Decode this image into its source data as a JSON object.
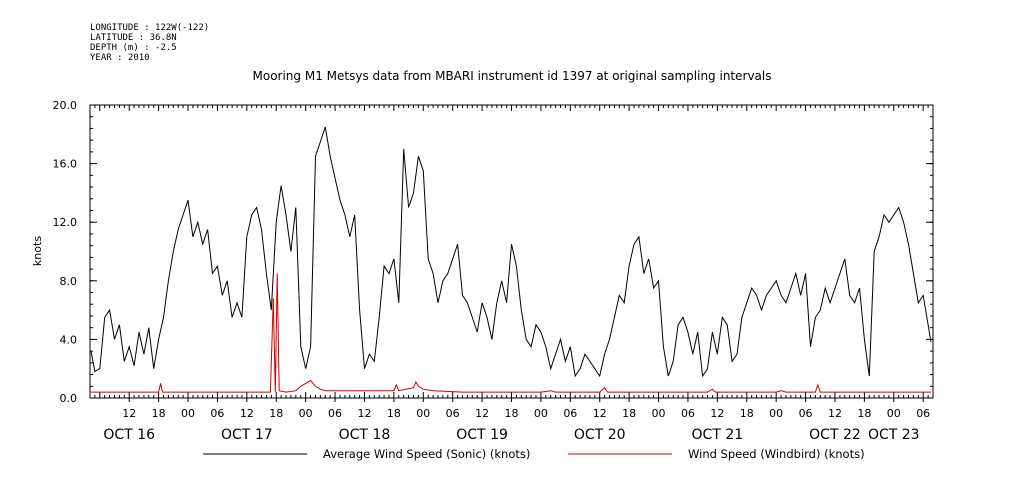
{
  "header": {
    "longitude": "LONGITUDE : 122W(-122)",
    "latitude": "LATITUDE : 36.8N",
    "depth": "DEPTH (m) : -2.5",
    "year": "YEAR : 2010"
  },
  "chart_data": {
    "type": "line",
    "title": "Mooring M1 Metsys data from MBARI instrument id 1397 at original sampling intervals",
    "ylabel": "knots",
    "xlabel": "",
    "ylim": [
      0,
      20
    ],
    "yticks": [
      "0.0",
      "4.0",
      "8.0",
      "12.0",
      "16.0",
      "20.0"
    ],
    "xlim_hours": [
      4,
      176
    ],
    "hour_ticks": [
      {
        "h": 12,
        "label": "12"
      },
      {
        "h": 18,
        "label": "18"
      },
      {
        "h": 24,
        "label": "00"
      },
      {
        "h": 30,
        "label": "06"
      },
      {
        "h": 36,
        "label": "12"
      },
      {
        "h": 42,
        "label": "18"
      },
      {
        "h": 48,
        "label": "00"
      },
      {
        "h": 54,
        "label": "06"
      },
      {
        "h": 60,
        "label": "12"
      },
      {
        "h": 66,
        "label": "18"
      },
      {
        "h": 72,
        "label": "00"
      },
      {
        "h": 78,
        "label": "06"
      },
      {
        "h": 84,
        "label": "12"
      },
      {
        "h": 90,
        "label": "18"
      },
      {
        "h": 96,
        "label": "00"
      },
      {
        "h": 102,
        "label": "06"
      },
      {
        "h": 108,
        "label": "12"
      },
      {
        "h": 114,
        "label": "18"
      },
      {
        "h": 120,
        "label": "00"
      },
      {
        "h": 126,
        "label": "06"
      },
      {
        "h": 132,
        "label": "12"
      },
      {
        "h": 138,
        "label": "18"
      },
      {
        "h": 144,
        "label": "00"
      },
      {
        "h": 150,
        "label": "06"
      },
      {
        "h": 156,
        "label": "12"
      },
      {
        "h": 162,
        "label": "18"
      },
      {
        "h": 168,
        "label": "00"
      },
      {
        "h": 174,
        "label": "06"
      }
    ],
    "day_labels": [
      {
        "h": 12,
        "label": "OCT 16"
      },
      {
        "h": 36,
        "label": "OCT 17"
      },
      {
        "h": 60,
        "label": "OCT 18"
      },
      {
        "h": 84,
        "label": "OCT 19"
      },
      {
        "h": 108,
        "label": "OCT 20"
      },
      {
        "h": 132,
        "label": "OCT 21"
      },
      {
        "h": 156,
        "label": "OCT 22"
      },
      {
        "h": 168,
        "label": "OCT 23"
      }
    ],
    "x_unit": "hours since OCT 16 00:00 (2010)",
    "series": [
      {
        "name": "Average Wind Speed (Sonic) (knots)",
        "color": "#000000",
        "points": [
          [
            4.2,
            3.2
          ],
          [
            5,
            1.8
          ],
          [
            6,
            2.0
          ],
          [
            7,
            5.5
          ],
          [
            8,
            6.0
          ],
          [
            9,
            4.0
          ],
          [
            10,
            5.0
          ],
          [
            11,
            2.5
          ],
          [
            12,
            3.5
          ],
          [
            13,
            2.2
          ],
          [
            14,
            4.5
          ],
          [
            15,
            3.0
          ],
          [
            16,
            4.8
          ],
          [
            17,
            2.0
          ],
          [
            18,
            4.0
          ],
          [
            19,
            5.5
          ],
          [
            20,
            8.0
          ],
          [
            21,
            10.0
          ],
          [
            22,
            11.5
          ],
          [
            23,
            12.5
          ],
          [
            24,
            13.5
          ],
          [
            25,
            11.0
          ],
          [
            26,
            12.0
          ],
          [
            27,
            10.5
          ],
          [
            28,
            11.5
          ],
          [
            29,
            8.5
          ],
          [
            30,
            9.0
          ],
          [
            31,
            7.0
          ],
          [
            32,
            8.0
          ],
          [
            33,
            5.5
          ],
          [
            34,
            6.5
          ],
          [
            35,
            5.5
          ],
          [
            36,
            11.0
          ],
          [
            37,
            12.5
          ],
          [
            38,
            13.0
          ],
          [
            39,
            11.5
          ],
          [
            40,
            8.5
          ],
          [
            41,
            6.0
          ],
          [
            42,
            12.0
          ],
          [
            43,
            14.5
          ],
          [
            44,
            12.5
          ],
          [
            45,
            10.0
          ],
          [
            46,
            13.0
          ],
          [
            47,
            3.5
          ],
          [
            48,
            2.0
          ],
          [
            49,
            3.5
          ],
          [
            50,
            16.5
          ],
          [
            51,
            17.5
          ],
          [
            52,
            18.5
          ],
          [
            53,
            16.5
          ],
          [
            54,
            15.0
          ],
          [
            55,
            13.5
          ],
          [
            56,
            12.5
          ],
          [
            57,
            11.0
          ],
          [
            58,
            12.5
          ],
          [
            59,
            6.0
          ],
          [
            60,
            2.0
          ],
          [
            61,
            3.0
          ],
          [
            62,
            2.5
          ],
          [
            63,
            5.5
          ],
          [
            64,
            9.0
          ],
          [
            65,
            8.5
          ],
          [
            66,
            9.5
          ],
          [
            67,
            6.5
          ],
          [
            68,
            17.0
          ],
          [
            69,
            13.0
          ],
          [
            70,
            14.0
          ],
          [
            71,
            16.5
          ],
          [
            72,
            15.5
          ],
          [
            73,
            9.5
          ],
          [
            74,
            8.5
          ],
          [
            75,
            6.5
          ],
          [
            76,
            8.0
          ],
          [
            77,
            8.5
          ],
          [
            78,
            9.5
          ],
          [
            79,
            10.5
          ],
          [
            80,
            7.0
          ],
          [
            81,
            6.5
          ],
          [
            82,
            5.5
          ],
          [
            83,
            4.5
          ],
          [
            84,
            6.5
          ],
          [
            85,
            5.5
          ],
          [
            86,
            4.0
          ],
          [
            87,
            6.5
          ],
          [
            88,
            8.0
          ],
          [
            89,
            6.5
          ],
          [
            90,
            10.5
          ],
          [
            91,
            9.0
          ],
          [
            92,
            6.0
          ],
          [
            93,
            4.0
          ],
          [
            94,
            3.5
          ],
          [
            95,
            5.0
          ],
          [
            96,
            4.5
          ],
          [
            97,
            3.5
          ],
          [
            98,
            2.0
          ],
          [
            99,
            3.0
          ],
          [
            100,
            4.0
          ],
          [
            101,
            2.5
          ],
          [
            102,
            3.5
          ],
          [
            103,
            1.5
          ],
          [
            104,
            2.0
          ],
          [
            105,
            3.0
          ],
          [
            106,
            2.5
          ],
          [
            107,
            2.0
          ],
          [
            108,
            1.5
          ],
          [
            109,
            3.0
          ],
          [
            110,
            4.0
          ],
          [
            111,
            5.5
          ],
          [
            112,
            7.0
          ],
          [
            113,
            6.5
          ],
          [
            114,
            9.0
          ],
          [
            115,
            10.5
          ],
          [
            116,
            11.0
          ],
          [
            117,
            8.5
          ],
          [
            118,
            9.5
          ],
          [
            119,
            7.5
          ],
          [
            120,
            8.0
          ],
          [
            121,
            3.5
          ],
          [
            122,
            1.5
          ],
          [
            123,
            2.5
          ],
          [
            124,
            5.0
          ],
          [
            125,
            5.5
          ],
          [
            126,
            4.5
          ],
          [
            127,
            3.0
          ],
          [
            128,
            4.5
          ],
          [
            129,
            1.5
          ],
          [
            130,
            2.0
          ],
          [
            131,
            4.5
          ],
          [
            132,
            3.0
          ],
          [
            133,
            5.5
          ],
          [
            134,
            5.0
          ],
          [
            135,
            2.5
          ],
          [
            136,
            3.0
          ],
          [
            137,
            5.5
          ],
          [
            138,
            6.5
          ],
          [
            139,
            7.5
          ],
          [
            140,
            7.0
          ],
          [
            141,
            6.0
          ],
          [
            142,
            7.0
          ],
          [
            143,
            7.5
          ],
          [
            144,
            8.0
          ],
          [
            145,
            7.0
          ],
          [
            146,
            6.5
          ],
          [
            147,
            7.5
          ],
          [
            148,
            8.5
          ],
          [
            149,
            7.0
          ],
          [
            150,
            8.5
          ],
          [
            151,
            3.5
          ],
          [
            152,
            5.5
          ],
          [
            153,
            6.0
          ],
          [
            154,
            7.5
          ],
          [
            155,
            6.5
          ],
          [
            156,
            7.5
          ],
          [
            157,
            8.5
          ],
          [
            158,
            9.5
          ],
          [
            159,
            7.0
          ],
          [
            160,
            6.5
          ],
          [
            161,
            7.5
          ],
          [
            162,
            4.0
          ],
          [
            163,
            1.5
          ],
          [
            164,
            10.0
          ],
          [
            165,
            11.0
          ],
          [
            166,
            12.5
          ],
          [
            167,
            12.0
          ],
          [
            168,
            12.5
          ],
          [
            169,
            13.0
          ],
          [
            170,
            12.0
          ],
          [
            171,
            10.5
          ],
          [
            172,
            8.5
          ],
          [
            173,
            6.5
          ],
          [
            174,
            7.0
          ],
          [
            175,
            5.0
          ],
          [
            175.6,
            3.8
          ]
        ]
      },
      {
        "name": "Wind Speed (Windbird) (knots)",
        "color": "#cc0000",
        "points": [
          [
            4.2,
            0.4
          ],
          [
            18,
            0.4
          ],
          [
            18.4,
            1.0
          ],
          [
            18.8,
            0.4
          ],
          [
            40,
            0.4
          ],
          [
            40.8,
            0.4
          ],
          [
            41.4,
            6.8
          ],
          [
            41.8,
            0.4
          ],
          [
            42.2,
            8.5
          ],
          [
            42.6,
            0.5
          ],
          [
            44,
            0.4
          ],
          [
            46,
            0.5
          ],
          [
            47,
            0.8
          ],
          [
            48,
            1.0
          ],
          [
            49,
            1.2
          ],
          [
            50,
            0.8
          ],
          [
            51,
            0.6
          ],
          [
            52,
            0.5
          ],
          [
            60,
            0.5
          ],
          [
            66,
            0.5
          ],
          [
            66.5,
            0.9
          ],
          [
            67,
            0.5
          ],
          [
            70,
            0.7
          ],
          [
            70.5,
            1.1
          ],
          [
            71,
            0.8
          ],
          [
            72,
            0.6
          ],
          [
            74,
            0.5
          ],
          [
            80,
            0.4
          ],
          [
            96,
            0.4
          ],
          [
            98,
            0.5
          ],
          [
            99,
            0.4
          ],
          [
            108,
            0.4
          ],
          [
            109,
            0.7
          ],
          [
            109.6,
            0.4
          ],
          [
            120,
            0.4
          ],
          [
            130,
            0.4
          ],
          [
            131,
            0.6
          ],
          [
            131.6,
            0.4
          ],
          [
            144,
            0.4
          ],
          [
            145,
            0.5
          ],
          [
            146,
            0.4
          ],
          [
            152,
            0.4
          ],
          [
            152.5,
            0.9
          ],
          [
            153,
            0.4
          ],
          [
            160,
            0.4
          ],
          [
            170,
            0.4
          ],
          [
            175.6,
            0.4
          ]
        ]
      }
    ],
    "legend": [
      {
        "label": "Average Wind Speed (Sonic) (knots)",
        "color": "#000000"
      },
      {
        "label": "Wind Speed (Windbird) (knots)",
        "color": "#cc0000"
      }
    ],
    "grid": false,
    "legend_position": "bottom"
  }
}
